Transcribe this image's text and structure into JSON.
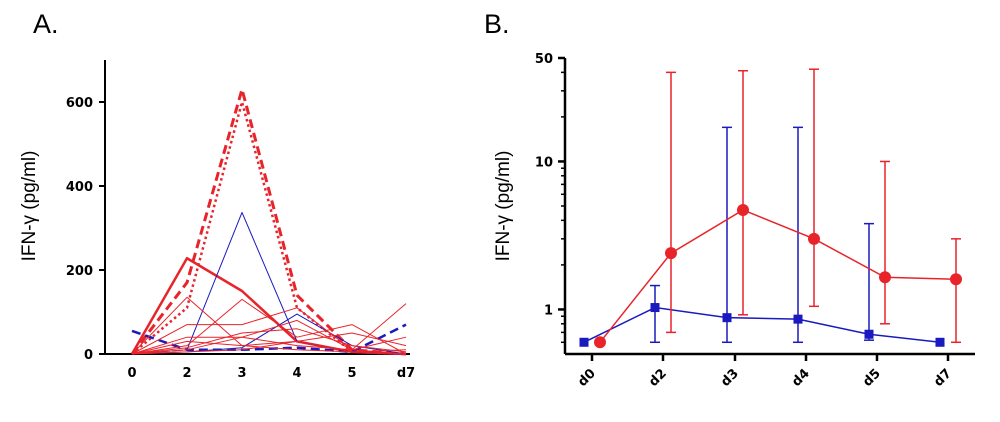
{
  "chart_data": [
    {
      "panel": "A.",
      "type": "line",
      "ylabel": "IFN-γ (pg/ml)",
      "xlabel": "",
      "categories": [
        "0",
        "2",
        "3",
        "4",
        "5",
        "d7"
      ],
      "x": [
        0,
        2,
        3,
        4,
        5,
        6
      ],
      "ylim": [
        0,
        700
      ],
      "yticks": [
        0,
        200,
        400,
        600
      ],
      "series": [
        {
          "name": "red dashed",
          "color": "#e8242b",
          "style": "dash",
          "width": 3,
          "values": [
            0,
            170,
            630,
            140,
            10,
            0
          ]
        },
        {
          "name": "red dotted",
          "color": "#e8242b",
          "style": "dot",
          "width": 2.5,
          "values": [
            0,
            110,
            600,
            110,
            5,
            0
          ]
        },
        {
          "name": "red thick",
          "color": "#e8242b",
          "style": "solid",
          "width": 2.5,
          "values": [
            0,
            228,
            150,
            30,
            5,
            0
          ]
        },
        {
          "name": "blue peak",
          "color": "#1a1abf",
          "style": "solid",
          "width": 1,
          "values": [
            0,
            10,
            337,
            30,
            5,
            0
          ]
        },
        {
          "name": "blue dashed",
          "color": "#1a1abf",
          "style": "dash",
          "width": 2.5,
          "values": [
            55,
            10,
            10,
            15,
            5,
            70
          ]
        },
        {
          "name": "blue thin 2",
          "color": "#1a1abf",
          "style": "solid",
          "width": 1,
          "values": [
            0,
            5,
            15,
            95,
            20,
            0
          ]
        },
        {
          "name": "red thin 1",
          "color": "#e8242b",
          "style": "solid",
          "width": 1,
          "values": [
            0,
            135,
            20,
            30,
            5,
            0
          ]
        },
        {
          "name": "red thin 2",
          "color": "#e8242b",
          "style": "solid",
          "width": 1,
          "values": [
            0,
            70,
            70,
            110,
            10,
            0
          ]
        },
        {
          "name": "red thin 3",
          "color": "#e8242b",
          "style": "solid",
          "width": 1,
          "values": [
            0,
            40,
            40,
            80,
            10,
            120
          ]
        },
        {
          "name": "red thin 4",
          "color": "#e8242b",
          "style": "solid",
          "width": 1,
          "values": [
            0,
            20,
            130,
            40,
            70,
            0
          ]
        },
        {
          "name": "red thin 5",
          "color": "#e8242b",
          "style": "solid",
          "width": 1,
          "values": [
            0,
            10,
            40,
            20,
            10,
            40
          ]
        },
        {
          "name": "red thin 6",
          "color": "#e8242b",
          "style": "solid",
          "width": 1,
          "values": [
            0,
            30,
            20,
            10,
            5,
            10
          ]
        },
        {
          "name": "red thin 7",
          "color": "#e8242b",
          "style": "solid",
          "width": 1,
          "values": [
            0,
            15,
            50,
            60,
            20,
            5
          ]
        },
        {
          "name": "red thin 8",
          "color": "#e8242b",
          "style": "solid",
          "width": 1,
          "values": [
            0,
            5,
            10,
            30,
            50,
            20
          ]
        }
      ]
    },
    {
      "panel": "B.",
      "type": "line",
      "ylabel": "IFN-γ (pg/ml)",
      "xlabel": "",
      "yscale": "log",
      "categories": [
        "d0",
        "d2",
        "d3",
        "d4",
        "d5",
        "d7"
      ],
      "ylim": [
        0.5,
        50
      ],
      "yticks": [
        1,
        10,
        50
      ],
      "ytick_labels": [
        "1",
        "10",
        "50"
      ],
      "series": [
        {
          "name": "blue",
          "color": "#1a1abf",
          "marker": "square",
          "values": [
            0.6,
            1.03,
            0.88,
            0.86,
            0.68,
            0.6
          ],
          "err_low": [
            0.6,
            0.6,
            0.6,
            0.6,
            0.62,
            0.6
          ],
          "err_high": [
            0.6,
            1.45,
            17,
            17,
            3.8,
            0.6
          ]
        },
        {
          "name": "red",
          "color": "#e8242b",
          "marker": "circle",
          "values": [
            0.6,
            2.4,
            4.7,
            3.0,
            1.65,
            1.6
          ],
          "err_low": [
            0.6,
            0.7,
            0.92,
            1.05,
            0.8,
            0.6
          ],
          "err_high": [
            0.6,
            40,
            41,
            42,
            10,
            3.0
          ]
        }
      ]
    }
  ]
}
